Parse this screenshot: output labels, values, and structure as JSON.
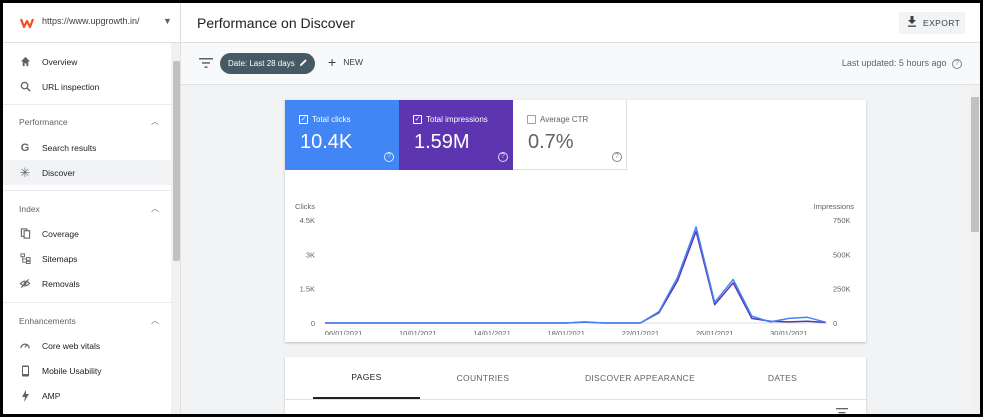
{
  "sidebar": {
    "property_url": "https://www.upgrowth.in/",
    "items": [
      {
        "label": "Overview",
        "icon": "home-icon"
      },
      {
        "label": "URL inspection",
        "icon": "search-icon"
      }
    ],
    "sections": [
      {
        "title": "Performance",
        "items": [
          {
            "label": "Search results",
            "icon": "google-g-icon"
          },
          {
            "label": "Discover",
            "icon": "asterisk-icon",
            "active": true
          }
        ]
      },
      {
        "title": "Index",
        "items": [
          {
            "label": "Coverage",
            "icon": "copy-icon"
          },
          {
            "label": "Sitemaps",
            "icon": "sitemap-icon"
          },
          {
            "label": "Removals",
            "icon": "eye-off-icon"
          }
        ]
      },
      {
        "title": "Enhancements",
        "items": [
          {
            "label": "Core web vitals",
            "icon": "gauge-icon"
          },
          {
            "label": "Mobile Usability",
            "icon": "phone-icon"
          },
          {
            "label": "AMP",
            "icon": "bolt-icon"
          }
        ]
      }
    ]
  },
  "header": {
    "title": "Performance on Discover",
    "export_label": "EXPORT"
  },
  "toolbar": {
    "date_chip": "Date: Last 28 days",
    "new_label": "NEW",
    "last_updated": "Last updated: 5 hours ago"
  },
  "metrics": [
    {
      "label": "Total clicks",
      "value": "10.4K",
      "checked": true,
      "color": "#4285f4"
    },
    {
      "label": "Total impressions",
      "value": "1.59M",
      "checked": true,
      "color": "#5e35b1"
    },
    {
      "label": "Average CTR",
      "value": "0.7%",
      "checked": false,
      "color": "#ffffff"
    }
  ],
  "chart_data": {
    "type": "line",
    "left_axis_label": "Clicks",
    "right_axis_label": "Impressions",
    "left_ticks": [
      "4.5K",
      "3K",
      "1.5K",
      "0"
    ],
    "right_ticks": [
      "750K",
      "500K",
      "250K",
      "0"
    ],
    "left_ylim": [
      0,
      4500
    ],
    "right_ylim": [
      0,
      750000
    ],
    "x_tick_labels": [
      "06/01/2021",
      "10/01/2021",
      "14/01/2021",
      "18/01/2021",
      "22/01/2021",
      "26/01/2021",
      "30/01/2021"
    ],
    "x": [
      "05/01/2021",
      "06/01/2021",
      "07/01/2021",
      "08/01/2021",
      "09/01/2021",
      "10/01/2021",
      "11/01/2021",
      "12/01/2021",
      "13/01/2021",
      "14/01/2021",
      "15/01/2021",
      "16/01/2021",
      "17/01/2021",
      "18/01/2021",
      "19/01/2021",
      "20/01/2021",
      "21/01/2021",
      "22/01/2021",
      "23/01/2021",
      "24/01/2021",
      "25/01/2021",
      "26/01/2021",
      "27/01/2021",
      "28/01/2021",
      "29/01/2021",
      "30/01/2021",
      "31/01/2021",
      "01/02/2021"
    ],
    "series": [
      {
        "name": "Total clicks",
        "color": "#4285f4",
        "axis": "left",
        "values": [
          0,
          0,
          0,
          0,
          0,
          0,
          0,
          0,
          0,
          0,
          0,
          0,
          0,
          0,
          50,
          0,
          0,
          0,
          500,
          2000,
          4200,
          900,
          1900,
          300,
          50,
          200,
          250,
          30
        ]
      },
      {
        "name": "Total impressions",
        "color": "#5e35b1",
        "axis": "left",
        "values": [
          0,
          0,
          0,
          0,
          0,
          0,
          0,
          0,
          0,
          0,
          0,
          0,
          0,
          0,
          40,
          0,
          0,
          0,
          450,
          1850,
          4000,
          800,
          1750,
          200,
          80,
          50,
          80,
          20
        ]
      }
    ],
    "grid": false
  },
  "bottom_tabs": [
    "PAGES",
    "COUNTRIES",
    "DISCOVER APPEARANCE",
    "DATES"
  ],
  "active_tab": "PAGES"
}
